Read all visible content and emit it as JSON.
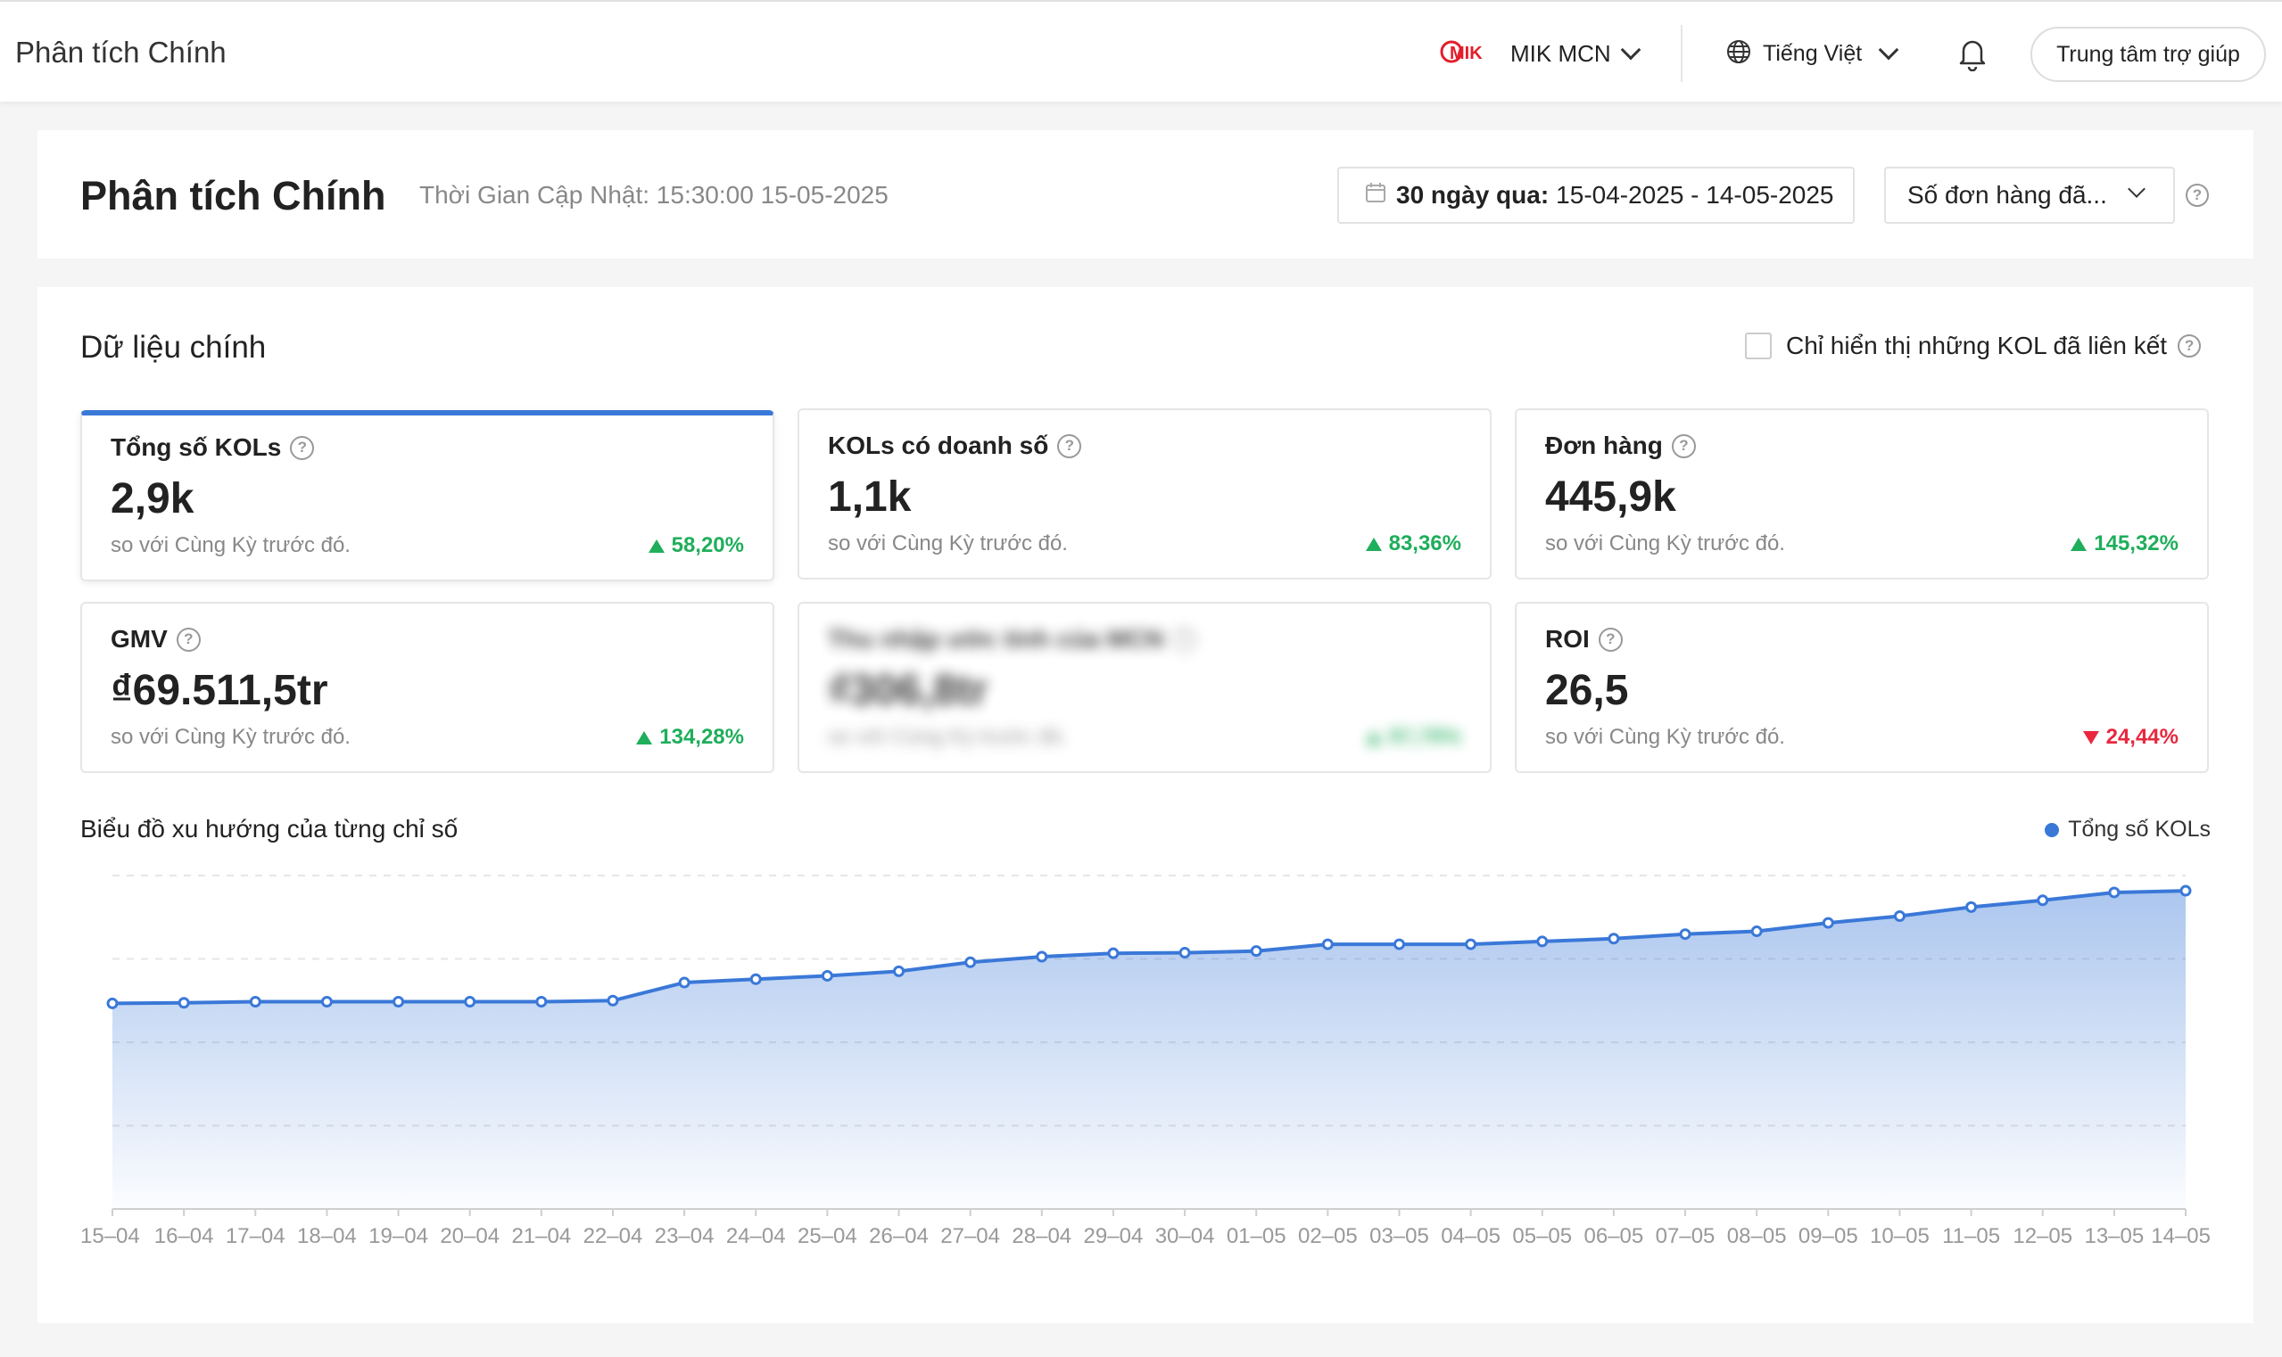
{
  "header": {
    "app_title": "Phân tích Chính",
    "mcn_name": "MIK MCN",
    "mcn_logo_text": "MIK",
    "language": "Tiếng Việt",
    "help_label": "Trung tâm trợ giúp",
    "icons": [
      "mik-logo",
      "chevron-down-icon",
      "globe-icon",
      "bell-icon"
    ]
  },
  "title_card": {
    "page_title": "Phân tích Chính",
    "updated_text": "Thời Gian Cập Nhật: 15:30:00 15-05-2025",
    "date_range_label": "30 ngày qua:",
    "date_range_value": "15-04-2025 - 14-05-2025",
    "metric_selector": "Số đơn hàng đã...",
    "icons": [
      "calendar-icon",
      "help-circle-icon"
    ]
  },
  "main": {
    "section_title": "Dữ liệu chính",
    "only_linked_label": "Chỉ hiển thị những KOL đã liên kết",
    "only_linked_checked": false,
    "compare_text": "so với Cùng Kỳ trước đó.",
    "kpis": [
      {
        "label": "Tổng số KOLs",
        "value": "2,9k",
        "delta": "58,20%",
        "direction": "up",
        "active": true
      },
      {
        "label": "KOLs có doanh số",
        "value": "1,1k",
        "delta": "83,36%",
        "direction": "up",
        "active": false
      },
      {
        "label": "Đơn hàng",
        "value": "445,9k",
        "delta": "145,32%",
        "direction": "up",
        "active": false
      },
      {
        "label": "GMV",
        "value": "₫69.511,5tr",
        "delta": "134,28%",
        "direction": "up",
        "active": false
      },
      {
        "label": "Thu nhập ước tính của MCN",
        "value": "₫306,8tr",
        "delta": "97,79%",
        "direction": "up",
        "active": false,
        "blurred": true
      },
      {
        "label": "ROI",
        "value": "26,5",
        "delta": "24,44%",
        "direction": "down",
        "active": false
      }
    ],
    "chart_title": "Biểu đồ xu hướng của từng chỉ số",
    "colors": {
      "accent": "#3a78d8",
      "up": "#1fae5b",
      "down": "#e8283e"
    }
  },
  "chart_data": {
    "type": "area",
    "title": "Biểu đồ xu hướng của từng chỉ số",
    "legend_position": "top-right",
    "grid": true,
    "categories": [
      "15–04",
      "16–04",
      "17–04",
      "18–04",
      "19–04",
      "20–04",
      "21–04",
      "22–04",
      "23–04",
      "24–04",
      "25–04",
      "26–04",
      "27–04",
      "28–04",
      "29–04",
      "30–04",
      "01–05",
      "02–05",
      "03–05",
      "04–05",
      "05–05",
      "06–05",
      "07–05",
      "08–05",
      "09–05",
      "10–05",
      "11–05",
      "12–05",
      "13–05",
      "14–05"
    ],
    "ylim": [
      0,
      2960
    ],
    "series": [
      {
        "name": "Tổng số KOLs",
        "color": "#3a78d8",
        "values": [
          1825,
          1830,
          1840,
          1840,
          1840,
          1840,
          1840,
          1850,
          2010,
          2040,
          2070,
          2110,
          2190,
          2240,
          2270,
          2275,
          2290,
          2350,
          2350,
          2350,
          2375,
          2400,
          2440,
          2465,
          2540,
          2600,
          2680,
          2740,
          2810,
          2825
        ]
      }
    ]
  }
}
